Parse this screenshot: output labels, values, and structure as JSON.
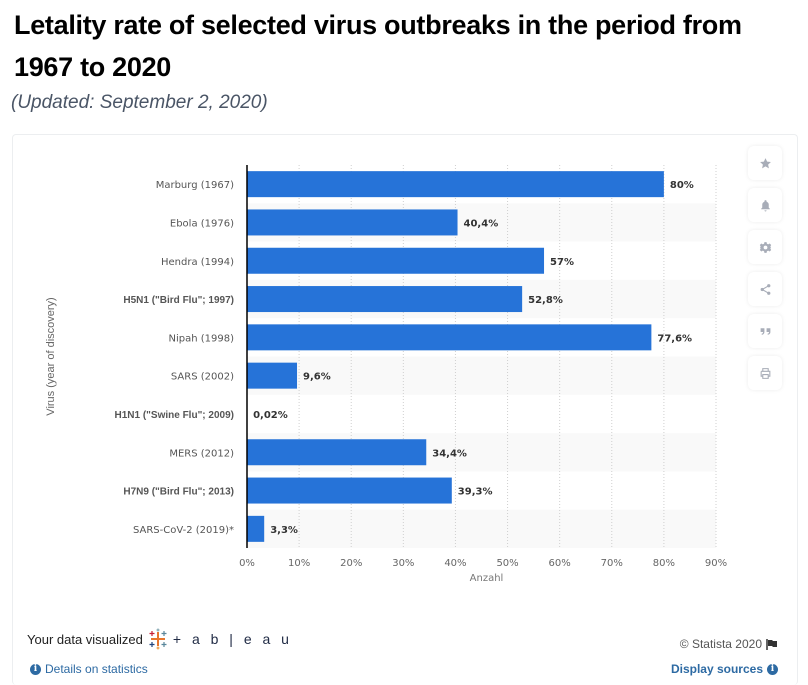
{
  "header": {
    "title": "Letality rate of selected virus outbreaks in the period from 1967 to 2020",
    "subtitle": "(Updated: September 2, 2020)"
  },
  "colors": {
    "bar": "#2673d8",
    "band": "#f9f9f9",
    "link": "#2d6aa3"
  },
  "side_tools": [
    {
      "name": "star-icon",
      "label": "Favorite"
    },
    {
      "name": "bell-icon",
      "label": "Notification"
    },
    {
      "name": "gear-icon",
      "label": "Settings"
    },
    {
      "name": "share-icon",
      "label": "Share"
    },
    {
      "name": "quote-icon",
      "label": "Cite"
    },
    {
      "name": "print-icon",
      "label": "Print"
    }
  ],
  "footer": {
    "visualized_label": "Your data visualized",
    "tableau_word": "+ a b | e a u",
    "details_label": "Details on statistics",
    "copyright": "© Statista 2020",
    "sources_label": "Display sources"
  },
  "chart_data": {
    "type": "bar",
    "orientation": "horizontal",
    "title": "Letality rate of selected virus outbreaks in the period from 1967 to 2020",
    "xlabel": "Anzahl",
    "ylabel": "Virus (year of discovery)",
    "xlim": [
      0,
      90
    ],
    "x_ticks": [
      "0%",
      "10%",
      "20%",
      "30%",
      "40%",
      "50%",
      "60%",
      "70%",
      "80%",
      "90%"
    ],
    "grid": true,
    "categories": [
      "Marburg (1967)",
      "Ebola (1976)",
      "Hendra (1994)",
      "H5N1 (\"Bird Flu\"; 1997)",
      "Nipah (1998)",
      "SARS (2002)",
      "H1N1 (\"Swine Flu\"; 2009)",
      "MERS (2012)",
      "H7N9 (\"Bird Flu\"; 2013)",
      "SARS-CoV-2 (2019)*"
    ],
    "values": [
      80,
      40.4,
      57,
      52.8,
      77.6,
      9.6,
      0.02,
      34.4,
      39.3,
      3.3
    ],
    "value_labels": [
      "80%",
      "40,4%",
      "57%",
      "52,8%",
      "77,6%",
      "9,6%",
      "0,02%",
      "34,4%",
      "39,3%",
      "3,3%"
    ],
    "bold_categories": [
      3,
      6,
      8
    ]
  }
}
